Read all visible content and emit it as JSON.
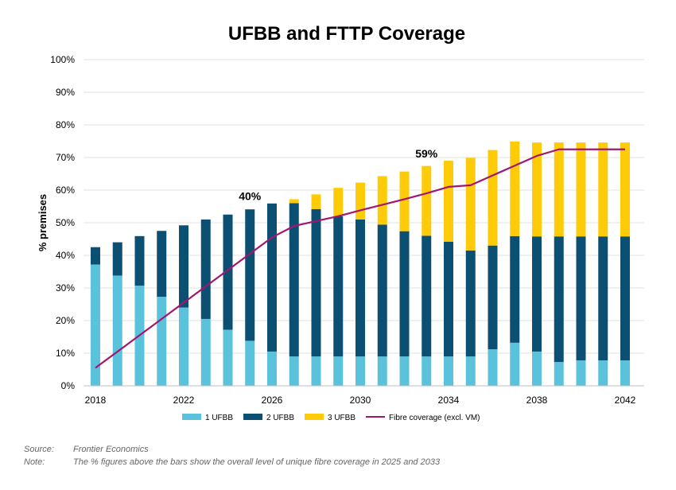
{
  "chart_data": {
    "type": "bar",
    "title": "UFBB and FTTP Coverage",
    "ylabel": "% premises",
    "xlabel": "",
    "ylim": [
      0,
      100
    ],
    "y_ticks": [
      "0%",
      "10%",
      "20%",
      "30%",
      "40%",
      "50%",
      "60%",
      "70%",
      "80%",
      "90%",
      "100%"
    ],
    "x_tick_labels": [
      "2018",
      "2022",
      "2026",
      "2030",
      "2034",
      "2038",
      "2042"
    ],
    "x": [
      2018,
      2019,
      2020,
      2021,
      2022,
      2023,
      2024,
      2025,
      2026,
      2027,
      2028,
      2029,
      2030,
      2031,
      2032,
      2033,
      2034,
      2035,
      2036,
      2037,
      2038,
      2039,
      2040,
      2041,
      2042
    ],
    "stacked": true,
    "series": [
      {
        "name": "1 UFBB",
        "color": "#5bc2dc",
        "values": [
          37.2,
          33.8,
          30.7,
          27.3,
          24.0,
          20.5,
          17.2,
          13.8,
          10.5,
          9.0,
          9.0,
          9.0,
          9.0,
          9.0,
          9.0,
          9.0,
          9.0,
          9.0,
          11.2,
          13.2,
          10.5,
          7.3,
          7.8,
          7.8,
          7.8
        ]
      },
      {
        "name": "2 UFBB",
        "color": "#0b4f72",
        "values": [
          5.3,
          10.2,
          15.2,
          20.2,
          25.2,
          30.5,
          35.3,
          40.3,
          45.4,
          47.0,
          45.2,
          43.0,
          42.0,
          40.4,
          38.4,
          37.0,
          35.2,
          32.5,
          31.8,
          32.7,
          35.3,
          38.5,
          38.0,
          38.0,
          38.0
        ]
      },
      {
        "name": "3 UFBB",
        "color": "#fdcb08",
        "values": [
          0,
          0,
          0,
          0,
          0,
          0,
          0,
          0,
          0,
          1.2,
          4.5,
          8.7,
          11.3,
          14.9,
          18.3,
          21.4,
          24.8,
          28.4,
          29.3,
          29.0,
          28.8,
          28.8,
          28.8,
          28.8,
          28.8
        ]
      }
    ],
    "line": {
      "name": "Fibre coverage (excl. VM)",
      "color": "#a3166f",
      "values": [
        5.5,
        10.5,
        15.5,
        20.5,
        25.5,
        30.5,
        35.5,
        40.5,
        45.5,
        49.0,
        50.5,
        52.0,
        53.8,
        55.5,
        57.2,
        59.0,
        61.0,
        61.5,
        64.5,
        67.5,
        70.5,
        72.5,
        72.5,
        72.5,
        72.5
      ]
    },
    "annotations": [
      {
        "text": "40%",
        "x": 2025,
        "y": 57
      },
      {
        "text": "59%",
        "x": 2033,
        "y": 70
      }
    ],
    "legend_position": "bottom",
    "grid": "horizontal"
  },
  "footnote": {
    "source_label": "Source:",
    "source_text": "Frontier Economics",
    "note_label": "Note:",
    "note_text": "The % figures above the bars show the overall level of unique fibre coverage in 2025 and 2033"
  }
}
